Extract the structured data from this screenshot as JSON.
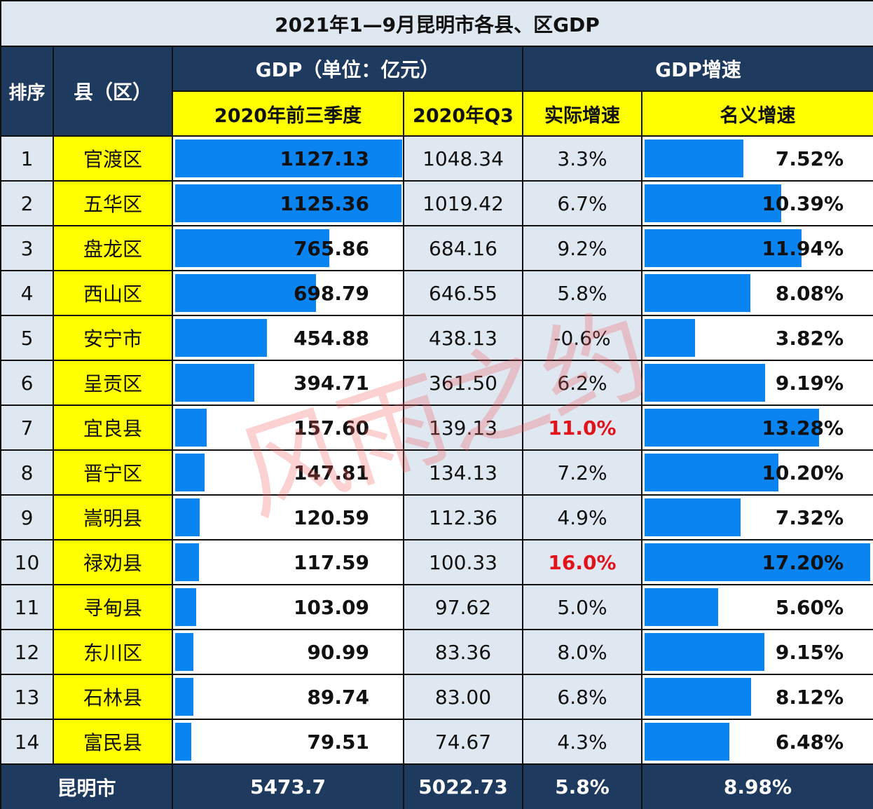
{
  "title": "2021年1—9月昆明市各县、区GDP",
  "header": {
    "rank": "排序",
    "county": "县（区）",
    "gdp_group": "GDP（单位：亿元）",
    "growth_group": "GDP增速",
    "col_2021": "2020年前三季度",
    "col_2020q3": "2020年Q3",
    "col_real": "实际增速",
    "col_nominal": "名义增速"
  },
  "rows": [
    {
      "rank": "1",
      "name": "官渡区",
      "gdp": "1127.13",
      "q3_2020": "1048.34",
      "real": "3.3%",
      "nominal": "7.52%",
      "gdp_bar": 1127.13,
      "nom_bar": 7.52,
      "highlight": false
    },
    {
      "rank": "2",
      "name": "五华区",
      "gdp": "1125.36",
      "q3_2020": "1019.42",
      "real": "6.7%",
      "nominal": "10.39%",
      "gdp_bar": 1125.36,
      "nom_bar": 10.39,
      "highlight": false
    },
    {
      "rank": "3",
      "name": "盘龙区",
      "gdp": "765.86",
      "q3_2020": "684.16",
      "real": "9.2%",
      "nominal": "11.94%",
      "gdp_bar": 765.86,
      "nom_bar": 11.94,
      "highlight": false
    },
    {
      "rank": "4",
      "name": "西山区",
      "gdp": "698.79",
      "q3_2020": "646.55",
      "real": "5.8%",
      "nominal": "8.08%",
      "gdp_bar": 698.79,
      "nom_bar": 8.08,
      "highlight": false
    },
    {
      "rank": "5",
      "name": "安宁市",
      "gdp": "454.88",
      "q3_2020": "438.13",
      "real": "-0.6%",
      "nominal": "3.82%",
      "gdp_bar": 454.88,
      "nom_bar": 3.82,
      "highlight": false
    },
    {
      "rank": "6",
      "name": "呈贡区",
      "gdp": "394.71",
      "q3_2020": "361.50",
      "real": "6.2%",
      "nominal": "9.19%",
      "gdp_bar": 394.71,
      "nom_bar": 9.19,
      "highlight": false
    },
    {
      "rank": "7",
      "name": "宜良县",
      "gdp": "157.60",
      "q3_2020": "139.13",
      "real": "11.0%",
      "nominal": "13.28%",
      "gdp_bar": 157.6,
      "nom_bar": 13.28,
      "highlight": true
    },
    {
      "rank": "8",
      "name": "晋宁区",
      "gdp": "147.81",
      "q3_2020": "134.13",
      "real": "7.2%",
      "nominal": "10.20%",
      "gdp_bar": 147.81,
      "nom_bar": 10.2,
      "highlight": false
    },
    {
      "rank": "9",
      "name": "嵩明县",
      "gdp": "120.59",
      "q3_2020": "112.36",
      "real": "4.9%",
      "nominal": "7.32%",
      "gdp_bar": 120.59,
      "nom_bar": 7.32,
      "highlight": false
    },
    {
      "rank": "10",
      "name": "禄劝县",
      "gdp": "117.59",
      "q3_2020": "100.33",
      "real": "16.0%",
      "nominal": "17.20%",
      "gdp_bar": 117.59,
      "nom_bar": 17.2,
      "highlight": true
    },
    {
      "rank": "11",
      "name": "寻甸县",
      "gdp": "103.09",
      "q3_2020": "97.62",
      "real": "5.0%",
      "nominal": "5.60%",
      "gdp_bar": 103.09,
      "nom_bar": 5.6,
      "highlight": false
    },
    {
      "rank": "12",
      "name": "东川区",
      "gdp": "90.99",
      "q3_2020": "83.36",
      "real": "8.0%",
      "nominal": "9.15%",
      "gdp_bar": 90.99,
      "nom_bar": 9.15,
      "highlight": false
    },
    {
      "rank": "13",
      "name": "石林县",
      "gdp": "89.74",
      "q3_2020": "83.00",
      "real": "6.8%",
      "nominal": "8.12%",
      "gdp_bar": 89.74,
      "nom_bar": 8.12,
      "highlight": false
    },
    {
      "rank": "14",
      "name": "富民县",
      "gdp": "79.51",
      "q3_2020": "74.67",
      "real": "4.3%",
      "nominal": "6.48%",
      "gdp_bar": 79.51,
      "nom_bar": 6.48,
      "highlight": false
    }
  ],
  "footer": {
    "name": "昆明市",
    "gdp": "5473.7",
    "q3_2020": "5022.73",
    "real": "5.8%",
    "nominal": "8.98%"
  },
  "watermark": "风雨之约",
  "colors": {
    "navy": "#1f3a5f",
    "yellow": "#ffff00",
    "bar_blue": "#0a84f0",
    "light_cell": "#dfe7f1",
    "highlight_red": "#e3131b"
  },
  "scales": {
    "gdp_max": 1127.13,
    "nominal_max": 17.2
  }
}
